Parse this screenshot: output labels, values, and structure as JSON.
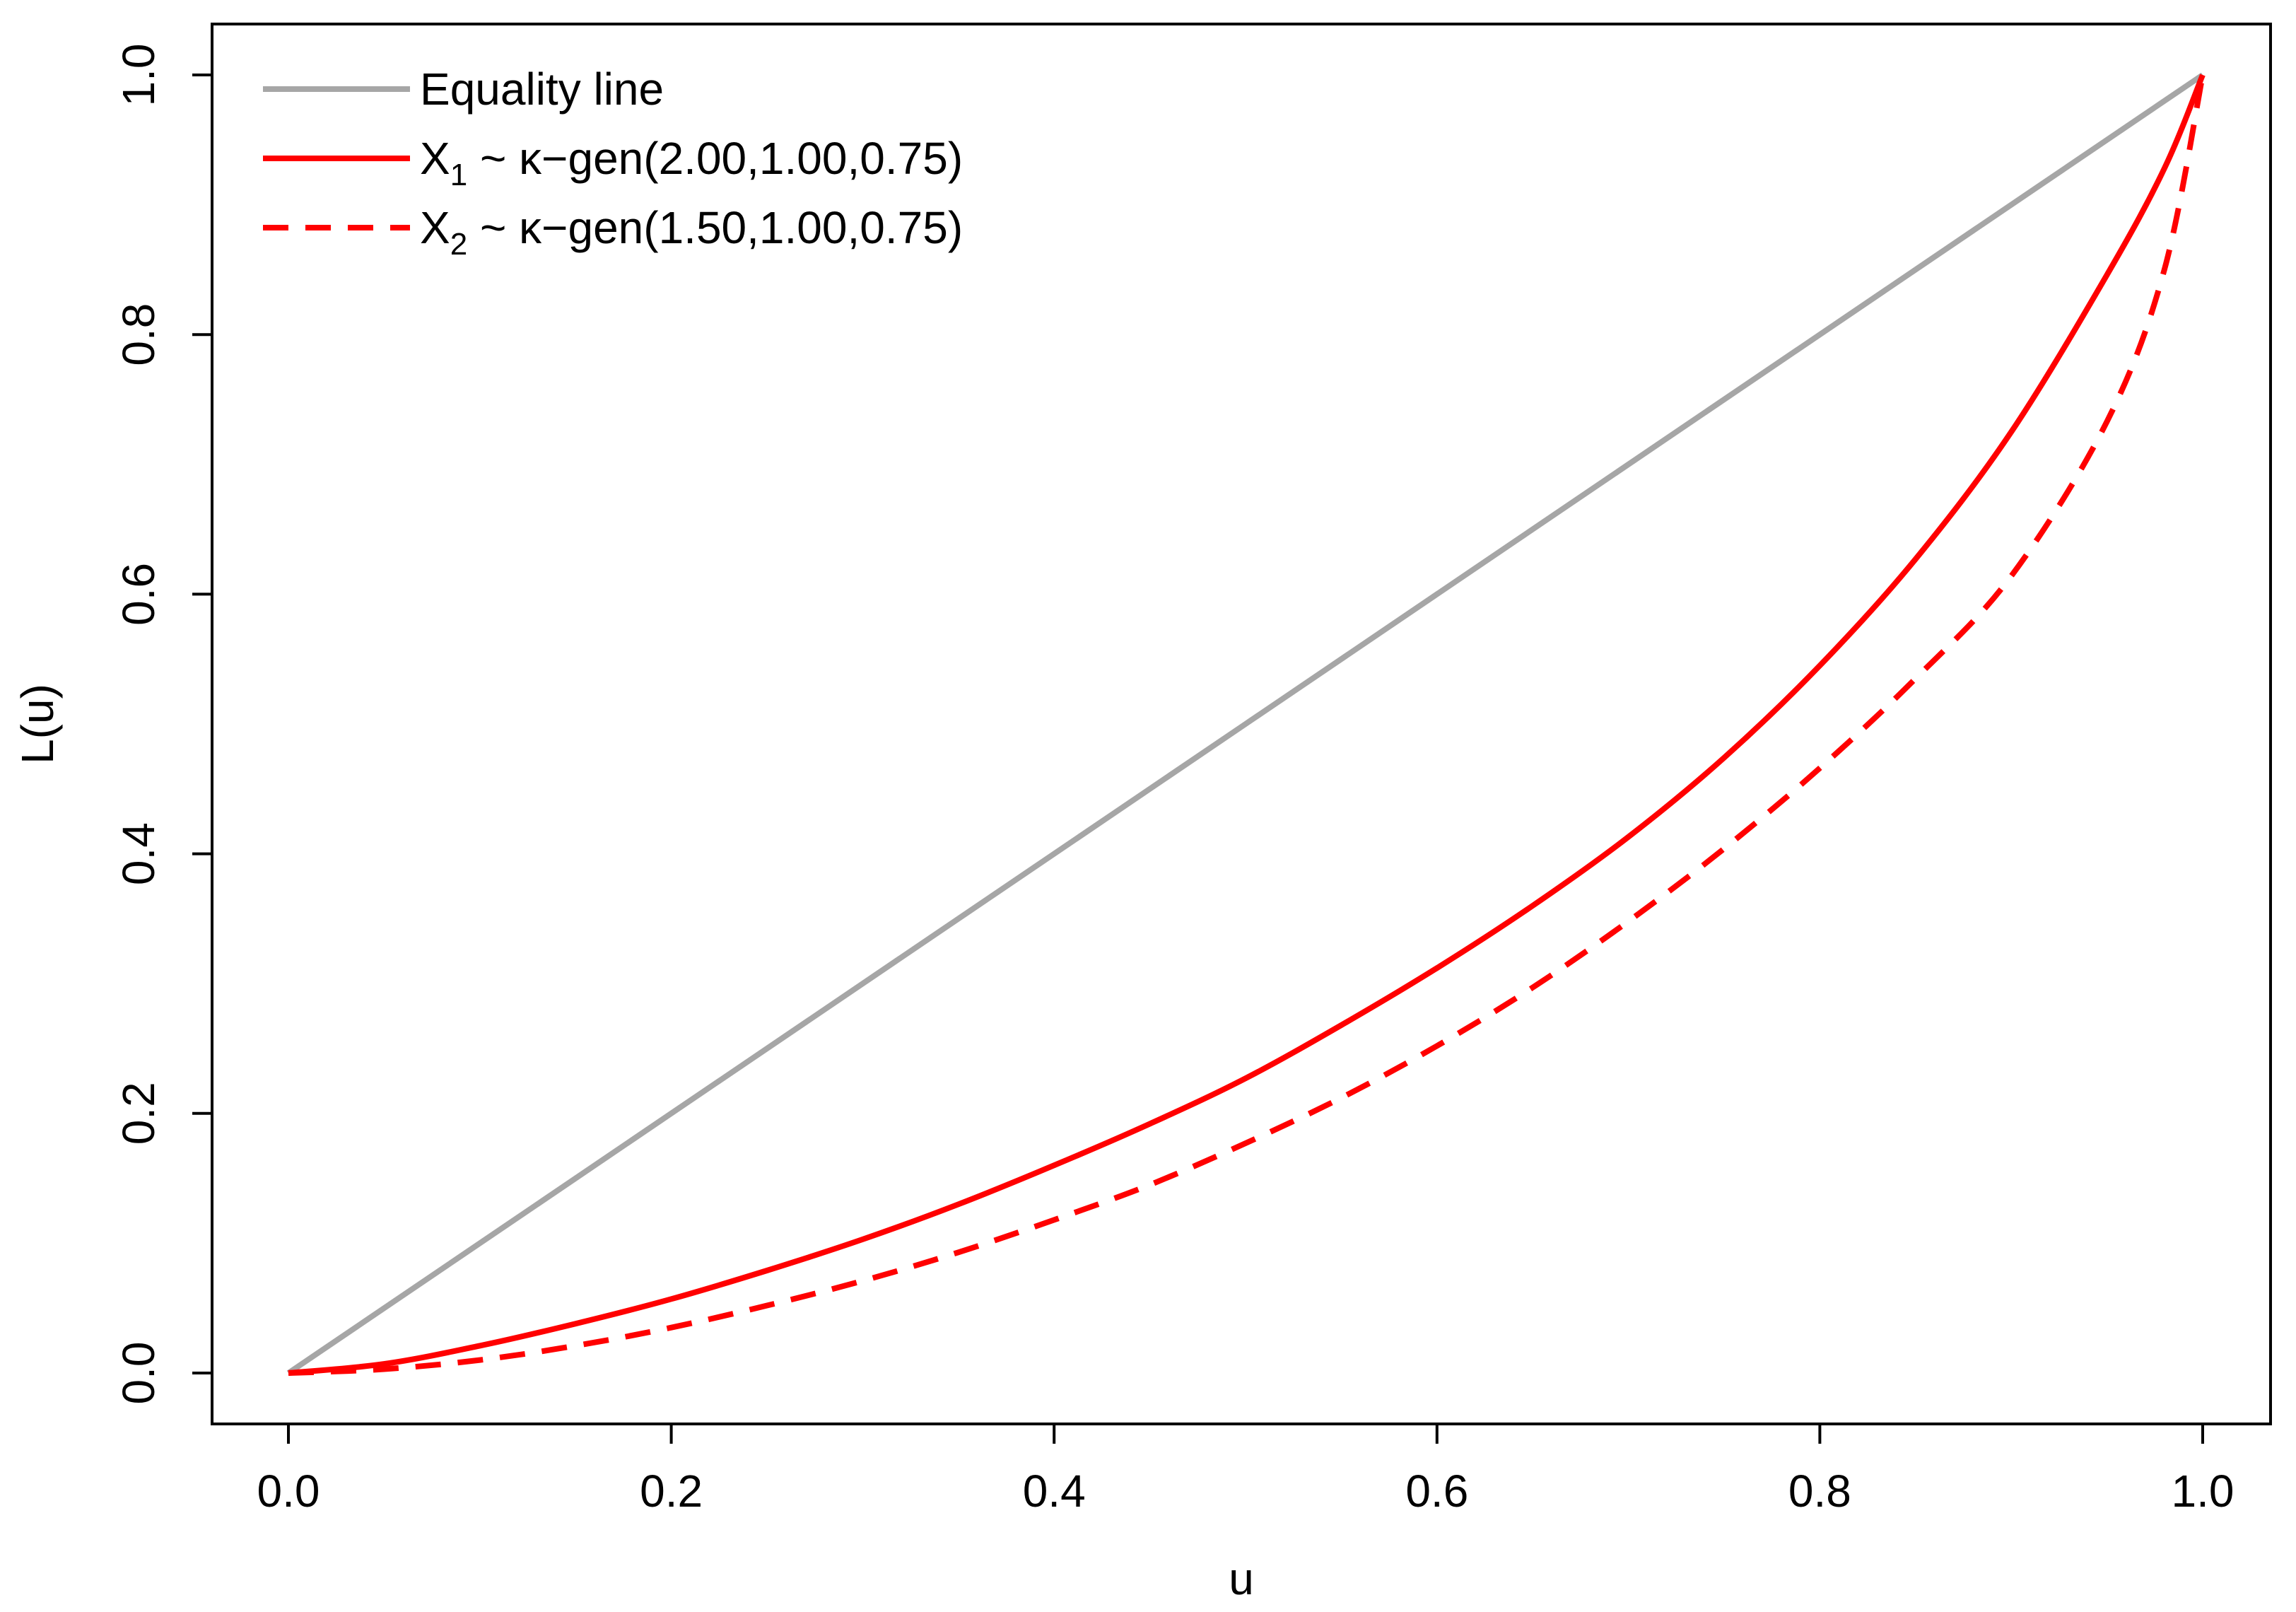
{
  "chart_data": {
    "type": "line",
    "title": "",
    "xlabel": "u",
    "ylabel": "L(u)",
    "xlim": [
      0,
      1
    ],
    "ylim": [
      0,
      1
    ],
    "x_ticks": [
      "0.0",
      "0.2",
      "0.4",
      "0.6",
      "0.8",
      "1.0"
    ],
    "y_ticks": [
      "0.0",
      "0.2",
      "0.4",
      "0.6",
      "0.8",
      "1.0"
    ],
    "grid": false,
    "legend_position": "top-left",
    "series": [
      {
        "name": "Equality line",
        "legend_main": "Equality line",
        "legend_sub": "",
        "legend_rest": "",
        "color": "#a6a6a6",
        "dash": "solid",
        "x": [
          0.0,
          1.0
        ],
        "values": [
          0.0,
          1.0
        ]
      },
      {
        "name": "X1 ~ κ−gen(2.00,1.00,0.75)",
        "legend_main": "X",
        "legend_sub": "1",
        "legend_rest": " ~ κ−gen(2.00,1.00,0.75)",
        "color": "#ff0000",
        "dash": "solid",
        "x": [
          0.0,
          0.05,
          0.1,
          0.15,
          0.2,
          0.25,
          0.3,
          0.35,
          0.4,
          0.45,
          0.5,
          0.55,
          0.6,
          0.65,
          0.7,
          0.75,
          0.8,
          0.85,
          0.9,
          0.95,
          0.98,
          1.0
        ],
        "values": [
          0.0,
          0.007,
          0.021,
          0.038,
          0.057,
          0.079,
          0.103,
          0.13,
          0.16,
          0.192,
          0.227,
          0.268,
          0.312,
          0.36,
          0.413,
          0.474,
          0.545,
          0.627,
          0.725,
          0.846,
          0.928,
          1.0
        ]
      },
      {
        "name": "X2 ~ κ−gen(1.50,1.00,0.75)",
        "legend_main": "X",
        "legend_sub": "2",
        "legend_rest": " ~ κ−gen(1.50,1.00,0.75)",
        "color": "#ff0000",
        "dash": "dashed",
        "x": [
          0.0,
          0.05,
          0.1,
          0.15,
          0.2,
          0.25,
          0.3,
          0.35,
          0.4,
          0.45,
          0.5,
          0.55,
          0.6,
          0.65,
          0.7,
          0.75,
          0.8,
          0.85,
          0.9,
          0.95,
          0.98,
          1.0
        ],
        "values": [
          0.0,
          0.003,
          0.01,
          0.021,
          0.035,
          0.052,
          0.071,
          0.093,
          0.118,
          0.145,
          0.177,
          0.212,
          0.252,
          0.297,
          0.348,
          0.404,
          0.466,
          0.535,
          0.614,
          0.733,
          0.85,
          1.0
        ]
      }
    ]
  }
}
